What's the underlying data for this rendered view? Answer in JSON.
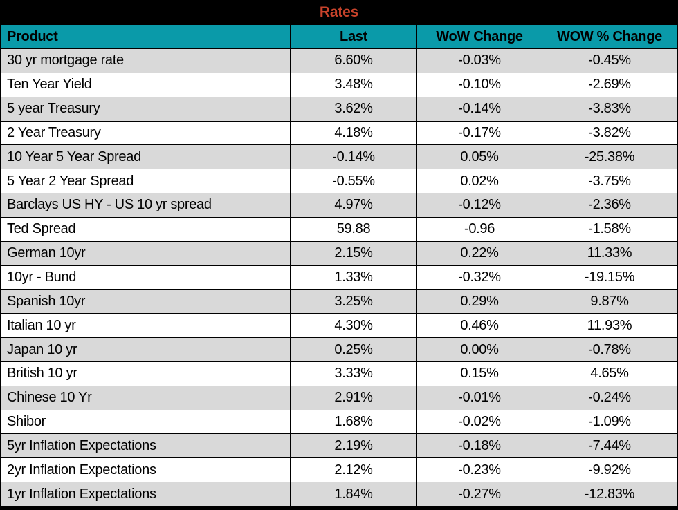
{
  "title": "Rates",
  "colors": {
    "border": "#000000",
    "title_color": "#C8432B",
    "header_bg": "#0A9AA9",
    "row_alt": "#D9D9D9",
    "row_bg": "#FFFFFF",
    "text": "#000000"
  },
  "chart_data": {
    "type": "table",
    "title": "Rates",
    "columns": [
      "Product",
      "Last",
      "WoW Change",
      "WOW % Change"
    ],
    "rows": [
      [
        "30 yr mortgage rate",
        "6.60%",
        "-0.03%",
        "-0.45%"
      ],
      [
        "Ten Year Yield",
        "3.48%",
        "-0.10%",
        "-2.69%"
      ],
      [
        "5 year Treasury",
        "3.62%",
        "-0.14%",
        "-3.83%"
      ],
      [
        "2 Year Treasury",
        "4.18%",
        "-0.17%",
        "-3.82%"
      ],
      [
        "10 Year 5 Year Spread",
        "-0.14%",
        "0.05%",
        "-25.38%"
      ],
      [
        "5 Year 2 Year Spread",
        "-0.55%",
        "0.02%",
        "-3.75%"
      ],
      [
        "Barclays US HY - US 10 yr spread",
        "4.97%",
        "-0.12%",
        "-2.36%"
      ],
      [
        "Ted Spread",
        "59.88",
        "-0.96",
        "-1.58%"
      ],
      [
        "German 10yr",
        "2.15%",
        "0.22%",
        "11.33%"
      ],
      [
        "10yr - Bund",
        "1.33%",
        "-0.32%",
        "-19.15%"
      ],
      [
        "Spanish 10yr",
        "3.25%",
        "0.29%",
        "9.87%"
      ],
      [
        "Italian 10 yr",
        "4.30%",
        "0.46%",
        "11.93%"
      ],
      [
        "Japan 10 yr",
        "0.25%",
        "0.00%",
        "-0.78%"
      ],
      [
        "British 10 yr",
        "3.33%",
        "0.15%",
        "4.65%"
      ],
      [
        "Chinese 10 Yr",
        "2.91%",
        "-0.01%",
        "-0.24%"
      ],
      [
        "Shibor",
        "1.68%",
        "-0.02%",
        "-1.09%"
      ],
      [
        "5yr Inflation Expectations",
        "2.19%",
        "-0.18%",
        "-7.44%"
      ],
      [
        "2yr Inflation Expectations",
        "2.12%",
        "-0.23%",
        "-9.92%"
      ],
      [
        "1yr Inflation Expectations",
        "1.84%",
        "-0.27%",
        "-12.83%"
      ]
    ]
  }
}
